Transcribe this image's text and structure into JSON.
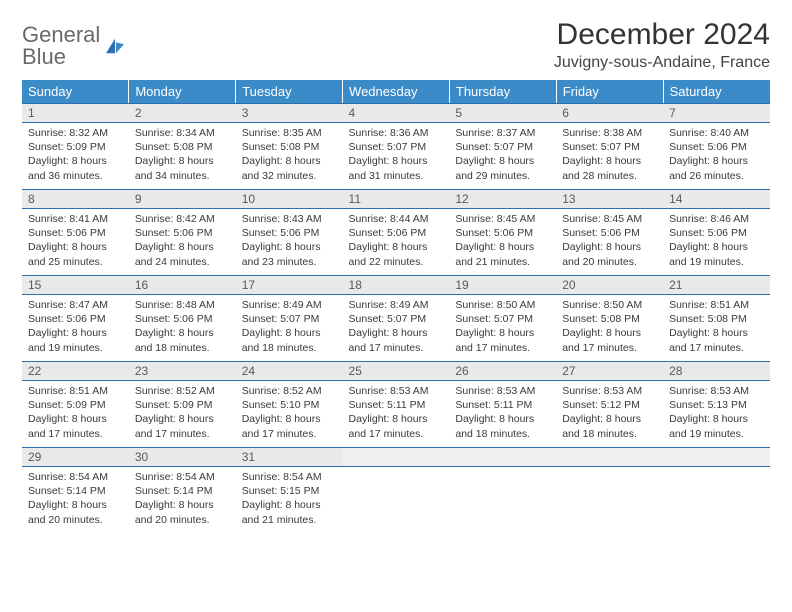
{
  "logo": {
    "line1": "General",
    "line2": "Blue"
  },
  "title": "December 2024",
  "subtitle": "Juvigny-sous-Andaine, France",
  "colors": {
    "header_bg": "#3b8bc8",
    "header_text": "#ffffff",
    "daynum_bg": "#e9e9e9",
    "border": "#2e6fb0",
    "logo_gray": "#6a6a6a",
    "logo_blue": "#2e6fb0"
  },
  "weekdays": [
    "Sunday",
    "Monday",
    "Tuesday",
    "Wednesday",
    "Thursday",
    "Friday",
    "Saturday"
  ],
  "weeks": [
    [
      {
        "n": "1",
        "sr": "8:32 AM",
        "ss": "5:09 PM",
        "dl": "8 hours and 36 minutes."
      },
      {
        "n": "2",
        "sr": "8:34 AM",
        "ss": "5:08 PM",
        "dl": "8 hours and 34 minutes."
      },
      {
        "n": "3",
        "sr": "8:35 AM",
        "ss": "5:08 PM",
        "dl": "8 hours and 32 minutes."
      },
      {
        "n": "4",
        "sr": "8:36 AM",
        "ss": "5:07 PM",
        "dl": "8 hours and 31 minutes."
      },
      {
        "n": "5",
        "sr": "8:37 AM",
        "ss": "5:07 PM",
        "dl": "8 hours and 29 minutes."
      },
      {
        "n": "6",
        "sr": "8:38 AM",
        "ss": "5:07 PM",
        "dl": "8 hours and 28 minutes."
      },
      {
        "n": "7",
        "sr": "8:40 AM",
        "ss": "5:06 PM",
        "dl": "8 hours and 26 minutes."
      }
    ],
    [
      {
        "n": "8",
        "sr": "8:41 AM",
        "ss": "5:06 PM",
        "dl": "8 hours and 25 minutes."
      },
      {
        "n": "9",
        "sr": "8:42 AM",
        "ss": "5:06 PM",
        "dl": "8 hours and 24 minutes."
      },
      {
        "n": "10",
        "sr": "8:43 AM",
        "ss": "5:06 PM",
        "dl": "8 hours and 23 minutes."
      },
      {
        "n": "11",
        "sr": "8:44 AM",
        "ss": "5:06 PM",
        "dl": "8 hours and 22 minutes."
      },
      {
        "n": "12",
        "sr": "8:45 AM",
        "ss": "5:06 PM",
        "dl": "8 hours and 21 minutes."
      },
      {
        "n": "13",
        "sr": "8:45 AM",
        "ss": "5:06 PM",
        "dl": "8 hours and 20 minutes."
      },
      {
        "n": "14",
        "sr": "8:46 AM",
        "ss": "5:06 PM",
        "dl": "8 hours and 19 minutes."
      }
    ],
    [
      {
        "n": "15",
        "sr": "8:47 AM",
        "ss": "5:06 PM",
        "dl": "8 hours and 19 minutes."
      },
      {
        "n": "16",
        "sr": "8:48 AM",
        "ss": "5:06 PM",
        "dl": "8 hours and 18 minutes."
      },
      {
        "n": "17",
        "sr": "8:49 AM",
        "ss": "5:07 PM",
        "dl": "8 hours and 18 minutes."
      },
      {
        "n": "18",
        "sr": "8:49 AM",
        "ss": "5:07 PM",
        "dl": "8 hours and 17 minutes."
      },
      {
        "n": "19",
        "sr": "8:50 AM",
        "ss": "5:07 PM",
        "dl": "8 hours and 17 minutes."
      },
      {
        "n": "20",
        "sr": "8:50 AM",
        "ss": "5:08 PM",
        "dl": "8 hours and 17 minutes."
      },
      {
        "n": "21",
        "sr": "8:51 AM",
        "ss": "5:08 PM",
        "dl": "8 hours and 17 minutes."
      }
    ],
    [
      {
        "n": "22",
        "sr": "8:51 AM",
        "ss": "5:09 PM",
        "dl": "8 hours and 17 minutes."
      },
      {
        "n": "23",
        "sr": "8:52 AM",
        "ss": "5:09 PM",
        "dl": "8 hours and 17 minutes."
      },
      {
        "n": "24",
        "sr": "8:52 AM",
        "ss": "5:10 PM",
        "dl": "8 hours and 17 minutes."
      },
      {
        "n": "25",
        "sr": "8:53 AM",
        "ss": "5:11 PM",
        "dl": "8 hours and 17 minutes."
      },
      {
        "n": "26",
        "sr": "8:53 AM",
        "ss": "5:11 PM",
        "dl": "8 hours and 18 minutes."
      },
      {
        "n": "27",
        "sr": "8:53 AM",
        "ss": "5:12 PM",
        "dl": "8 hours and 18 minutes."
      },
      {
        "n": "28",
        "sr": "8:53 AM",
        "ss": "5:13 PM",
        "dl": "8 hours and 19 minutes."
      }
    ],
    [
      {
        "n": "29",
        "sr": "8:54 AM",
        "ss": "5:14 PM",
        "dl": "8 hours and 20 minutes."
      },
      {
        "n": "30",
        "sr": "8:54 AM",
        "ss": "5:14 PM",
        "dl": "8 hours and 20 minutes."
      },
      {
        "n": "31",
        "sr": "8:54 AM",
        "ss": "5:15 PM",
        "dl": "8 hours and 21 minutes."
      },
      null,
      null,
      null,
      null
    ]
  ],
  "labels": {
    "sunrise": "Sunrise:",
    "sunset": "Sunset:",
    "daylight": "Daylight:"
  }
}
